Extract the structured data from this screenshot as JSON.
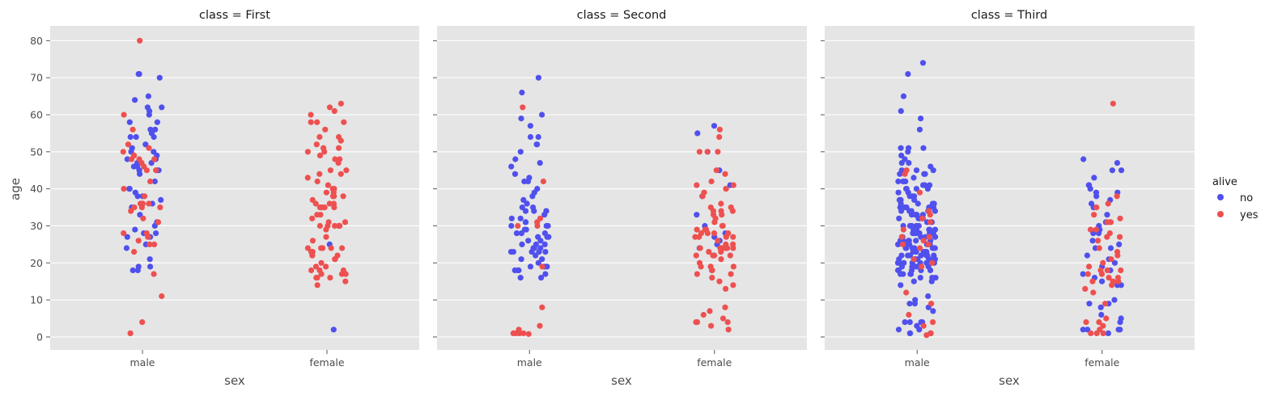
{
  "chart_data": {
    "type": "scatter",
    "subtype": "strip",
    "x_label": "sex",
    "y_label": "age",
    "y_ticks": [
      0,
      10,
      20,
      30,
      40,
      50,
      60,
      70,
      80
    ],
    "ylim": [
      -3.5,
      84
    ],
    "categories": [
      "male",
      "female"
    ],
    "grid": true,
    "legend": {
      "title": "alive",
      "position": "right",
      "entries": [
        {
          "label": "no",
          "color": "#5050ee"
        },
        {
          "label": "yes",
          "color": "#ee5050"
        }
      ]
    },
    "panels": [
      {
        "title": "class = First",
        "points": {
          "male": {
            "no": [
              65,
              64,
              62,
              62,
              61,
              60,
              58,
              58,
              56,
              56,
              55,
              54,
              54,
              54,
              52,
              51,
              50,
              50,
              49,
              48,
              48,
              47,
              47,
              47,
              46,
              46,
              45,
              45,
              45,
              44,
              42,
              40,
              40,
              39,
              38,
              38,
              37,
              36,
              36,
              35,
              33,
              31,
              30,
              29,
              28,
              28,
              27,
              27,
              25,
              24,
              21,
              19,
              19,
              18,
              18,
              71,
              71,
              70
            ],
            "yes": [
              80,
              60,
              56,
              52,
              51,
              50,
              49,
              49,
              48,
              48,
              48,
              47,
              46,
              45,
              45,
              42,
              40,
              38,
              36,
              36,
              36,
              35,
              35,
              35,
              34,
              32,
              31,
              28,
              28,
              27,
              27,
              26,
              25,
              25,
              23,
              17,
              11,
              4,
              1
            ]
          },
          "female": {
            "no": [
              25,
              2
            ],
            "yes": [
              63,
              62,
              61,
              60,
              58,
              58,
              58,
              56,
              54,
              54,
              53,
              52,
              51,
              51,
              50,
              50,
              49,
              48,
              48,
              47,
              45,
              45,
              44,
              44,
              43,
              42,
              41,
              40,
              40,
              39,
              39,
              38,
              38,
              38,
              37,
              36,
              36,
              36,
              35,
              35,
              35,
              35,
              35,
              33,
              33,
              32,
              31,
              31,
              30,
              30,
              30,
              30,
              30,
              29,
              27,
              26,
              24,
              24,
              24,
              24,
              24,
              23,
              23,
              22,
              22,
              22,
              21,
              21,
              20,
              19,
              19,
              18,
              18,
              18,
              17,
              17,
              17,
              16,
              16,
              16,
              15,
              14
            ]
          }
        }
      },
      {
        "title": "class = Second",
        "points": {
          "male": {
            "no": [
              70,
              66,
              60,
              59,
              57,
              54,
              54,
              52,
              52,
              50,
              48,
              47,
              46,
              44,
              43,
              42,
              42,
              40,
              39,
              38,
              37,
              36,
              36,
              35,
              35,
              34,
              34,
              34,
              34,
              33,
              32,
              32,
              31,
              31,
              30,
              30,
              30,
              29,
              29,
              28,
              28,
              28,
              27,
              27,
              27,
              26,
              26,
              25,
              25,
              25,
              24,
              24,
              24,
              23,
              23,
              23,
              23,
              23,
              22,
              21,
              21,
              20,
              19,
              19,
              19,
              18,
              18,
              18,
              17,
              16,
              16
            ],
            "yes": [
              62,
              42,
              32,
              31,
              30,
              30,
              19,
              8,
              3,
              2,
              1,
              1,
              1,
              1,
              0.8
            ]
          },
          "female": {
            "no": [
              57,
              55,
              50,
              45,
              41,
              38,
              33,
              30,
              28,
              27,
              26,
              25,
              24,
              24,
              18
            ],
            "yes": [
              56,
              54,
              50,
              50,
              50,
              45,
              44,
              42,
              41,
              41,
              40,
              40,
              39,
              38,
              36,
              35,
              35,
              34,
              34,
              34,
              33,
              33,
              32,
              31,
              30,
              30,
              29,
              29,
              29,
              28,
              28,
              28,
              28,
              27,
              27,
              27,
              27,
              26,
              25,
              25,
              24,
              24,
              24,
              24,
              24,
              24,
              24,
              23,
              23,
              22,
              22,
              22,
              22,
              21,
              20,
              19,
              19,
              19,
              18,
              17,
              17,
              16,
              15,
              14,
              13,
              8,
              7,
              6,
              5,
              4,
              4,
              4,
              3,
              2
            ]
          }
        }
      },
      {
        "title": "class = Third",
        "points": {
          "male": {
            "no": [
              74,
              71,
              65,
              61,
              59,
              56,
              51,
              51,
              51,
              50,
              49,
              48,
              47,
              47,
              46,
              45,
              45,
              45,
              44,
              44,
              44,
              43,
              42,
              42,
              42,
              41,
              41,
              41,
              40,
              40,
              40,
              40,
              39,
              39,
              38,
              38,
              38,
              37,
              37,
              37,
              36,
              36,
              36,
              36,
              35,
              35,
              35,
              35,
              35,
              34,
              34,
              34,
              34,
              34,
              33,
              33,
              33,
              33,
              33,
              32,
              32,
              32,
              32,
              31,
              31,
              31,
              30,
              30,
              30,
              30,
              30,
              29,
              29,
              29,
              29,
              29,
              29,
              28,
              28,
              28,
              28,
              28,
              28,
              27,
              27,
              27,
              27,
              27,
              26,
              26,
              26,
              26,
              26,
              26,
              25,
              25,
              25,
              25,
              25,
              25,
              24,
              24,
              24,
              24,
              24,
              24,
              24,
              23,
              23,
              23,
              23,
              23,
              23,
              22,
              22,
              22,
              22,
              22,
              22,
              22,
              21,
              21,
              21,
              21,
              21,
              21,
              21,
              20,
              20,
              20,
              20,
              20,
              20,
              20,
              19,
              19,
              19,
              19,
              19,
              19,
              19,
              18,
              18,
              18,
              18,
              18,
              18,
              17,
              17,
              17,
              17,
              16,
              16,
              16,
              15,
              15,
              14,
              11,
              10,
              9,
              9,
              8,
              7,
              4,
              4,
              4,
              4,
              3,
              2,
              2,
              1,
              1,
              1
            ],
            "yes": [
              45,
              44,
              39,
              34,
              33,
              32,
              31,
              29,
              27,
              27,
              26,
              25,
              25,
              24,
              21,
              20,
              19,
              12,
              9,
              6,
              4,
              3,
              1,
              0.5
            ]
          },
          "female": {
            "no": [
              48,
              47,
              45,
              45,
              43,
              41,
              41,
              40,
              39,
              39,
              38,
              37,
              36,
              35,
              33,
              31,
              30,
              29,
              28,
              28,
              26,
              25,
              24,
              24,
              22,
              21,
              20,
              19,
              18,
              17,
              16,
              15,
              14,
              14,
              10,
              9,
              9,
              8,
              6,
              5,
              4,
              2,
              2,
              2,
              2,
              1
            ],
            "yes": [
              63,
              38,
              36,
              35,
              33,
              32,
              31,
              31,
              31,
              29,
              29,
              28,
              27,
              27,
              26,
              24,
              23,
              22,
              21,
              20,
              19,
              18,
              18,
              18,
              17,
              17,
              16,
              16,
              15,
              15,
              15,
              14,
              13,
              12,
              9,
              5,
              4,
              4,
              3,
              2,
              1,
              1,
              1
            ]
          }
        }
      }
    ]
  }
}
